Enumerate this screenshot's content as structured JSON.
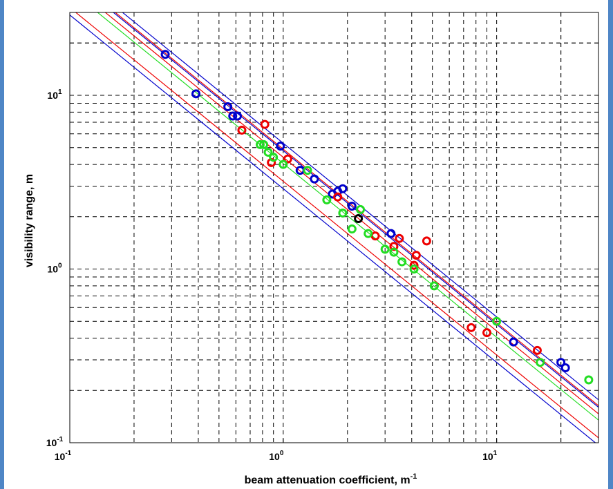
{
  "chart_data": {
    "type": "scatter",
    "title": "",
    "xlabel": "beam attenuation coefficient, m",
    "xlabel_sup": "-1",
    "ylabel": "visibility range, m",
    "xscale": "log",
    "yscale": "log",
    "xlim": [
      0.1,
      30
    ],
    "ylim": [
      0.1,
      30
    ],
    "grid": true,
    "x_ticks": [
      {
        "value": 0.1,
        "base": "10",
        "exp": "-1"
      },
      {
        "value": 1,
        "base": "10",
        "exp": "0"
      },
      {
        "value": 10,
        "base": "10",
        "exp": "1"
      }
    ],
    "y_ticks": [
      {
        "value": 0.1,
        "base": "10",
        "exp": "-1"
      },
      {
        "value": 1,
        "base": "10",
        "exp": "0"
      },
      {
        "value": 10,
        "base": "10",
        "exp": "1"
      }
    ],
    "colors": {
      "blue": "#0000cc",
      "red": "#ee0000",
      "green": "#22dd22",
      "black": "#000000"
    },
    "series": [
      {
        "color": "#0000cc",
        "points": [
          [
            0.28,
            17.2
          ],
          [
            0.39,
            10.2
          ],
          [
            0.55,
            8.6
          ],
          [
            0.58,
            7.6
          ],
          [
            0.61,
            7.6
          ],
          [
            0.97,
            5.1
          ],
          [
            1.2,
            3.7
          ],
          [
            1.4,
            3.3
          ],
          [
            1.7,
            2.7
          ],
          [
            1.8,
            2.8
          ],
          [
            1.9,
            2.9
          ],
          [
            2.1,
            2.3
          ],
          [
            3.2,
            1.6
          ],
          [
            12.0,
            0.38
          ],
          [
            20.0,
            0.29
          ],
          [
            21.0,
            0.27
          ]
        ]
      },
      {
        "color": "#ee0000",
        "points": [
          [
            0.64,
            6.3
          ],
          [
            0.82,
            6.8
          ],
          [
            0.88,
            4.1
          ],
          [
            1.05,
            4.3
          ],
          [
            1.8,
            2.6
          ],
          [
            2.7,
            1.55
          ],
          [
            3.3,
            1.35
          ],
          [
            3.5,
            1.5
          ],
          [
            4.1,
            1.05
          ],
          [
            4.2,
            1.2
          ],
          [
            4.7,
            1.45
          ],
          [
            7.6,
            0.46
          ],
          [
            9.0,
            0.43
          ],
          [
            15.5,
            0.34
          ]
        ]
      },
      {
        "color": "#22dd22",
        "points": [
          [
            0.78,
            5.2
          ],
          [
            0.81,
            5.2
          ],
          [
            0.85,
            4.7
          ],
          [
            0.9,
            4.4
          ],
          [
            1.0,
            4.0
          ],
          [
            1.3,
            3.7
          ],
          [
            1.6,
            2.5
          ],
          [
            1.9,
            2.1
          ],
          [
            2.1,
            1.7
          ],
          [
            2.3,
            2.2
          ],
          [
            2.5,
            1.6
          ],
          [
            3.0,
            1.3
          ],
          [
            3.3,
            1.25
          ],
          [
            3.6,
            1.1
          ],
          [
            4.1,
            1.0
          ],
          [
            5.1,
            0.8
          ],
          [
            10.0,
            0.5
          ],
          [
            16.0,
            0.29
          ],
          [
            27.0,
            0.23
          ]
        ]
      },
      {
        "color": "#000000",
        "points": [
          [
            2.25,
            1.95
          ]
        ]
      }
    ],
    "fit_lines": [
      {
        "color": "#0000cc",
        "k": 2.9
      },
      {
        "color": "#0000cc",
        "k": 4.8
      },
      {
        "color": "#0000cc",
        "k": 5.3
      },
      {
        "color": "#ee0000",
        "k": 3.2
      },
      {
        "color": "#ee0000",
        "k": 4.4
      },
      {
        "color": "#ee0000",
        "k": 4.9
      },
      {
        "color": "#22dd22",
        "k": 4.05
      }
    ]
  }
}
